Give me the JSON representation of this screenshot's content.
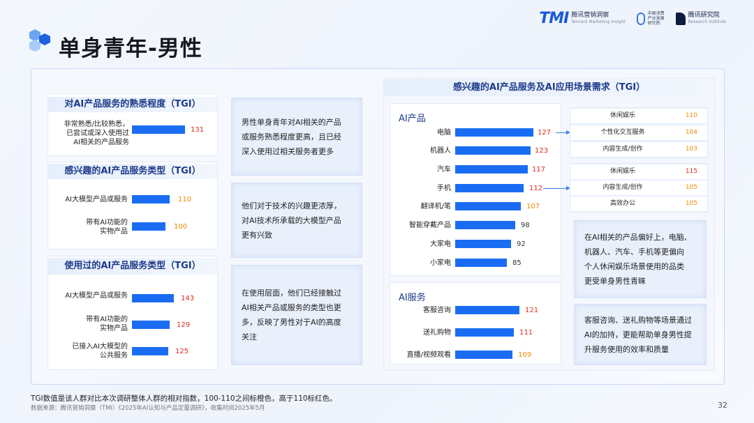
{
  "header": {
    "title": "单身青年-男性",
    "logos": {
      "tmi_mark": "TMI",
      "tmi_name": "腾讯营销洞察",
      "tmi_en": "Tencent Marketing Insight",
      "b_line1": "中国消费",
      "b_line2": "产业发展",
      "b_line3": "研究院",
      "c_name": "腾讯研究院",
      "c_en": "Research Institute"
    }
  },
  "left": {
    "familiarity": {
      "title": "对AI产品服务的熟悉程度（TGI）",
      "items": [
        {
          "label1": "非常熟悉/比较熟悉，",
          "label2": "已尝试或深入使用过",
          "label3": "AI相关的产品服务",
          "value": "131",
          "level": "red"
        }
      ]
    },
    "interest": {
      "title": "感兴趣的AI产品服务类型（TGI）",
      "items": [
        {
          "label1": "AI大模型产品或服务",
          "label2": "",
          "value": "110",
          "level": "orange"
        },
        {
          "label1": "带有AI功能的",
          "label2": "实物产品",
          "value": "100",
          "level": "orange"
        }
      ]
    },
    "used": {
      "title": "使用过的AI产品服务类型（TGI）",
      "items": [
        {
          "label1": "AI大模型产品或服务",
          "label2": "",
          "value": "143",
          "level": "red"
        },
        {
          "label1": "带有AI功能的",
          "label2": "实物产品",
          "value": "129",
          "level": "red"
        },
        {
          "label1": "已接入AI大模型的",
          "label2": "公共服务",
          "value": "125",
          "level": "red"
        }
      ]
    },
    "notes": [
      {
        "l1": "男性单身青年对AI相关的产品",
        "l2": "或服务熟悉程度更高，且已经",
        "l3": "深入使用过相关服务者更多"
      },
      {
        "l1": "他们对于技术的兴趣更浓厚，",
        "l2": "对AI技术所承载的大模型产品",
        "l3": "更有兴致"
      },
      {
        "l1": "在使用层面，他们已经接触过",
        "l2": "AI相关产品或服务的类型也更",
        "l3": "多，反映了男性对于AI的高度",
        "l4": "关注"
      }
    ]
  },
  "right": {
    "title": "感兴趣的AI产品服务及AI应用场景需求（TGI）",
    "products": {
      "heading": "AI产品",
      "items": [
        {
          "label": "电脑",
          "value": "127",
          "level": "red"
        },
        {
          "label": "机器人",
          "value": "123",
          "level": "red"
        },
        {
          "label": "汽车",
          "value": "117",
          "level": "red"
        },
        {
          "label": "手机",
          "value": "112",
          "level": "red"
        },
        {
          "label": "翻译机/笔",
          "value": "107",
          "level": "orange"
        },
        {
          "label": "智能穿戴产品",
          "value": "98",
          "level": "normal"
        },
        {
          "label": "大家电",
          "value": "92",
          "level": "normal"
        },
        {
          "label": "小家电",
          "value": "85",
          "level": "normal"
        }
      ]
    },
    "services": {
      "heading": "AI服务",
      "items": [
        {
          "label": "客服咨询",
          "value": "121",
          "level": "red"
        },
        {
          "label": "送礼购物",
          "value": "111",
          "level": "red"
        },
        {
          "label": "直播/视频观看",
          "value": "109",
          "level": "orange"
        }
      ]
    },
    "computer_scenes": [
      {
        "label": "休闲娱乐",
        "value": "110"
      },
      {
        "label": "个性化交互服务",
        "value": "104"
      },
      {
        "label": "内容生成/创作",
        "value": "103"
      }
    ],
    "phone_scenes": [
      {
        "label": "休闲娱乐",
        "value": "115"
      },
      {
        "label": "内容生成/创作",
        "value": "105"
      },
      {
        "label": "高效办公",
        "value": "105"
      }
    ],
    "notes": [
      {
        "l1": "在AI相关的产品偏好上，电脑、",
        "l2": "机器人、汽车、手机等更偏向",
        "l3": "个人休闲娱乐场景使用的品类",
        "l4": "更受单身男性青睐"
      },
      {
        "l1": "客服咨询、送礼购物等场景通过",
        "l2": "AI的加持，更能帮助单身男性提",
        "l3": "升服务使用的效率和质量"
      }
    ]
  },
  "footer": {
    "note": "TGI数值是该人群对比本次调研整体人群的相对指数，100-110之间标橙色，高于110标红色。",
    "source": "数据来源：腾讯营销洞察（TMI）《2025年AI认知与产品定量调研》，收集时间2025年5月",
    "page": "32"
  },
  "colors": {
    "bar": "#1a6df2",
    "red": "#e0281e",
    "orange": "#f08a00",
    "title_blue": "#1d3a8a"
  }
}
